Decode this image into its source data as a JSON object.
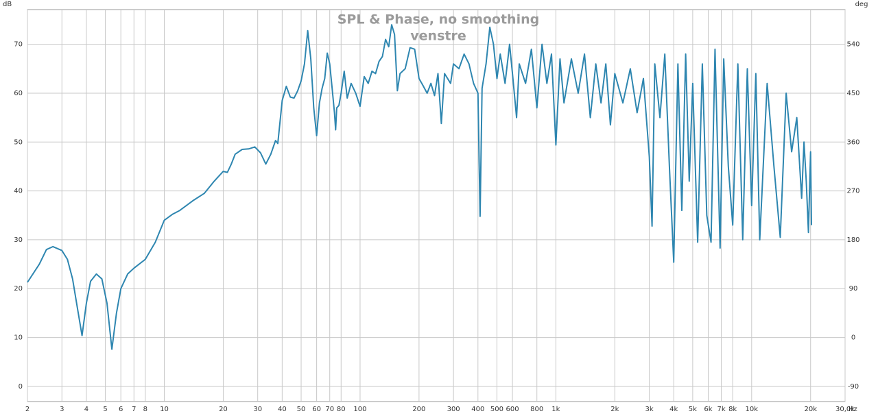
{
  "chart_data": {
    "type": "line",
    "title": "SPL & Phase, no smoothing",
    "subtitle": "venstre",
    "xlabel": "Hz",
    "ylabel": "dB",
    "y2label": "deg",
    "xscale": "log",
    "grid": true,
    "xlim": [
      2,
      30000
    ],
    "ylim": [
      -3.1,
      77.1
    ],
    "y2lim": [
      -117.9,
      603.9
    ],
    "xticks": [
      2,
      3,
      4,
      5,
      6,
      7,
      8,
      10,
      20,
      30,
      40,
      50,
      60,
      70,
      80,
      100,
      200,
      300,
      400,
      500,
      600,
      800,
      {
        "value": 1000,
        "label": "1k"
      },
      {
        "value": 2000,
        "label": "2k"
      },
      {
        "value": 3000,
        "label": "3k"
      },
      {
        "value": 4000,
        "label": "4k"
      },
      {
        "value": 5000,
        "label": "5k"
      },
      {
        "value": 6000,
        "label": "6k"
      },
      {
        "value": 7000,
        "label": "7k"
      },
      {
        "value": 8000,
        "label": "8k"
      },
      {
        "value": 10000,
        "label": "10k"
      },
      {
        "value": 20000,
        "label": "20k"
      },
      {
        "value": 30000,
        "label": "30,0k"
      }
    ],
    "yticks": [
      0,
      10,
      20,
      30,
      40,
      50,
      60,
      70
    ],
    "y2ticks": [
      -90,
      0,
      90,
      180,
      270,
      360,
      450,
      540
    ],
    "series": [
      {
        "color": "#2e86b0",
        "x": [
          2,
          2.3,
          2.5,
          2.7,
          3,
          3.2,
          3.4,
          3.6,
          3.8,
          4,
          4.2,
          4.5,
          4.8,
          5.1,
          5.4,
          5.7,
          6,
          6.5,
          7,
          8,
          9,
          10,
          11,
          12,
          14,
          16,
          18,
          20,
          21,
          22,
          23,
          25,
          27,
          29,
          31,
          33,
          35,
          37,
          38,
          40,
          42,
          44,
          46,
          48,
          50,
          52,
          54,
          56,
          58,
          60,
          62,
          64,
          66,
          68,
          70,
          72,
          74,
          75,
          76,
          78,
          80,
          83,
          86,
          90,
          95,
          100,
          105,
          110,
          115,
          120,
          125,
          130,
          135,
          140,
          145,
          150,
          155,
          160,
          170,
          180,
          190,
          200,
          210,
          220,
          230,
          240,
          250,
          260,
          270,
          290,
          300,
          320,
          340,
          360,
          380,
          400,
          410,
          420,
          440,
          460,
          480,
          500,
          520,
          550,
          580,
          600,
          630,
          650,
          700,
          750,
          800,
          850,
          900,
          950,
          1000,
          1050,
          1100,
          1200,
          1300,
          1400,
          1500,
          1600,
          1700,
          1800,
          1900,
          2000,
          2200,
          2400,
          2600,
          2800,
          3000,
          3100,
          3200,
          3400,
          3600,
          3800,
          4000,
          4200,
          4400,
          4600,
          4800,
          5000,
          5300,
          5600,
          5900,
          6200,
          6500,
          6900,
          7200,
          7600,
          8000,
          8500,
          9000,
          9500,
          10000,
          10500,
          11000,
          12000,
          13000,
          14000,
          15000,
          16000,
          17000,
          18000,
          18500,
          19000,
          19500,
          20000,
          20200
        ],
        "values": [
          21.3,
          25,
          28,
          28.6,
          27.8,
          26,
          22,
          16,
          10.4,
          17,
          21.5,
          23,
          22,
          17,
          7.6,
          15,
          20,
          23,
          24.2,
          26,
          29.5,
          34,
          35.2,
          36,
          38,
          39.5,
          42,
          44,
          43.8,
          45.5,
          47.5,
          48.5,
          48.6,
          49,
          47.8,
          45.5,
          47.5,
          50.3,
          49.7,
          58.5,
          61.4,
          59.2,
          59,
          60.5,
          62.5,
          66,
          72.8,
          67,
          57,
          51.3,
          58,
          61,
          63,
          68.2,
          66,
          61,
          56,
          52.5,
          57,
          57.5,
          60,
          64.5,
          59,
          62,
          60,
          57.3,
          63.4,
          62,
          64.5,
          64,
          66.5,
          67.5,
          71,
          69.5,
          74,
          72,
          60.5,
          64,
          65,
          69.3,
          69,
          63,
          61.5,
          60,
          62,
          59.5,
          64,
          53.8,
          64,
          62,
          66,
          65,
          68,
          66,
          62,
          60,
          34.8,
          61,
          66,
          73.5,
          70,
          63,
          68,
          62,
          70,
          64,
          55,
          66,
          62,
          69,
          57,
          70,
          62,
          68,
          49.4,
          67,
          58,
          67,
          60,
          68,
          55,
          66,
          58,
          66,
          53.5,
          64,
          58,
          65,
          56,
          63,
          47,
          32.8,
          66,
          55,
          68,
          45,
          25.4,
          66,
          36,
          68,
          42,
          62,
          29.5,
          66,
          35,
          29.5,
          69,
          28.3,
          67,
          45,
          33,
          66,
          30,
          65,
          37,
          64,
          30,
          62,
          45,
          30.5,
          60,
          48,
          55,
          38.5,
          50,
          42,
          31.5,
          48,
          33
        ]
      }
    ]
  }
}
